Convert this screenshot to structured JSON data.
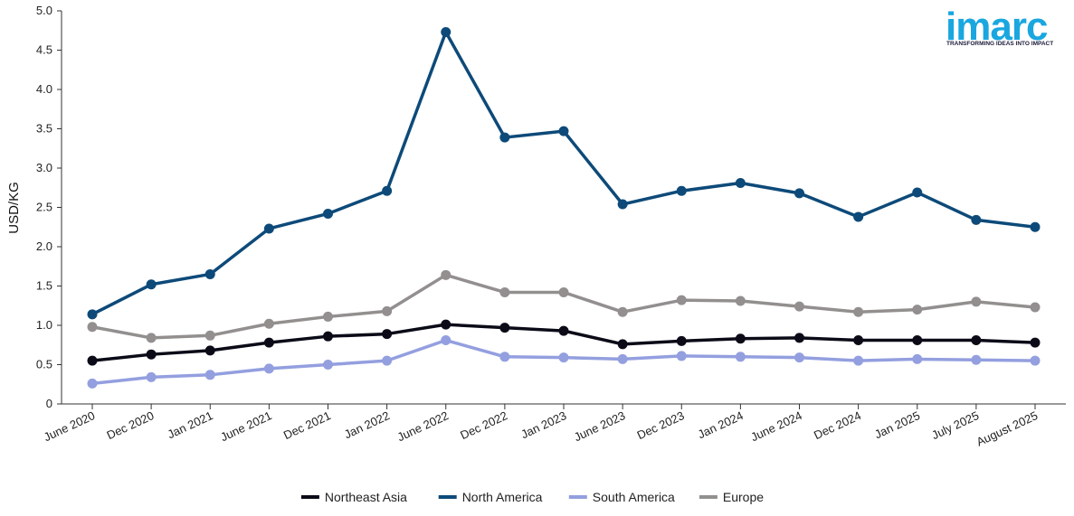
{
  "logo": {
    "word": "imarc",
    "tagline": "TRANSFORMING IDEAS INTO IMPACT",
    "color": "#1aa7e0"
  },
  "chart_data": {
    "type": "line",
    "ylabel": "USD/KG",
    "xlabel": "",
    "ylim": [
      0,
      5.0
    ],
    "yticks": [
      "0",
      "0.5",
      "1.0",
      "1.5",
      "2.0",
      "2.5",
      "3.0",
      "3.5",
      "4.0",
      "4.5",
      "5.0"
    ],
    "grid": false,
    "legend_position": "bottom",
    "categories": [
      "June 2020",
      "Dec 2020",
      "Jan 2021",
      "June 2021",
      "Dec 2021",
      "Jan 2022",
      "June 2022",
      "Dec 2022",
      "Jan 2023",
      "June 2023",
      "Dec 2023",
      "Jan 2024",
      "June 2024",
      "Dec 2024",
      "Jan 2025",
      "July 2025",
      "August 2025"
    ],
    "series": [
      {
        "name": "North America",
        "color": "#0d4a79",
        "values": [
          1.14,
          1.52,
          1.65,
          2.23,
          2.42,
          2.71,
          4.73,
          3.39,
          3.47,
          2.54,
          2.71,
          2.81,
          2.68,
          2.38,
          2.69,
          2.34,
          2.25
        ]
      },
      {
        "name": "Europe",
        "color": "#938f8f",
        "values": [
          0.98,
          0.84,
          0.87,
          1.02,
          1.11,
          1.18,
          1.64,
          1.42,
          1.42,
          1.17,
          1.32,
          1.31,
          1.24,
          1.17,
          1.2,
          1.3,
          1.23
        ]
      },
      {
        "name": "Northeast Asia",
        "color": "#0b0b18",
        "values": [
          0.55,
          0.63,
          0.68,
          0.78,
          0.86,
          0.89,
          1.01,
          0.97,
          0.93,
          0.76,
          0.8,
          0.83,
          0.84,
          0.81,
          0.81,
          0.81,
          0.78
        ]
      },
      {
        "name": "South America",
        "color": "#939fdf",
        "values": [
          0.26,
          0.34,
          0.37,
          0.45,
          0.5,
          0.55,
          0.81,
          0.6,
          0.59,
          0.57,
          0.61,
          0.6,
          0.59,
          0.55,
          0.57,
          0.56,
          0.55
        ]
      }
    ],
    "legend": [
      "Northeast Asia",
      "North America",
      "South America",
      "Europe"
    ]
  }
}
